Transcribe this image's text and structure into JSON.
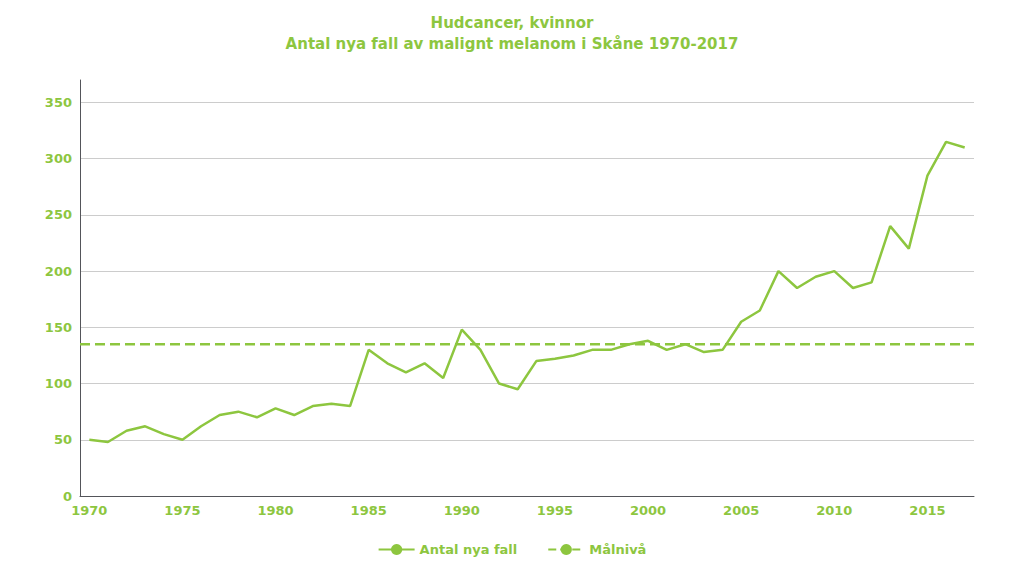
{
  "chart_data": {
    "type": "line",
    "title": "Hudcancer, kvinnor",
    "subtitle": "Antal nya fall av malignt melanom i Skåne 1970-2017",
    "color": "#8dc63f",
    "x": [
      1970,
      1971,
      1972,
      1973,
      1974,
      1975,
      1976,
      1977,
      1978,
      1979,
      1980,
      1981,
      1982,
      1983,
      1984,
      1985,
      1986,
      1987,
      1988,
      1989,
      1990,
      1991,
      1992,
      1993,
      1994,
      1995,
      1996,
      1997,
      1998,
      1999,
      2000,
      2001,
      2002,
      2003,
      2004,
      2005,
      2006,
      2007,
      2008,
      2009,
      2010,
      2011,
      2012,
      2013,
      2014,
      2015,
      2016,
      2017
    ],
    "series": [
      {
        "name": "Antal nya fall",
        "color": "#8dc63f",
        "line_style": "solid",
        "values": [
          50,
          48,
          58,
          62,
          55,
          50,
          62,
          72,
          75,
          70,
          78,
          72,
          80,
          82,
          80,
          130,
          118,
          110,
          118,
          105,
          148,
          130,
          100,
          95,
          120,
          122,
          125,
          130,
          130,
          135,
          138,
          130,
          135,
          128,
          130,
          155,
          165,
          200,
          185,
          195,
          200,
          185,
          190,
          240,
          220,
          285,
          315,
          310
        ]
      },
      {
        "name": "Målnivå",
        "type": "hline",
        "color": "#8dc63f",
        "line_style": "dashed",
        "value": 135
      }
    ],
    "xlim": [
      1969.5,
      2017.5
    ],
    "xticks": [
      1970,
      1975,
      1980,
      1985,
      1990,
      1995,
      2000,
      2005,
      2010,
      2015
    ],
    "ylim": [
      0,
      370
    ],
    "yticks": [
      0,
      50,
      100,
      150,
      200,
      250,
      300,
      350
    ],
    "grid": true,
    "legend": "bottom"
  }
}
